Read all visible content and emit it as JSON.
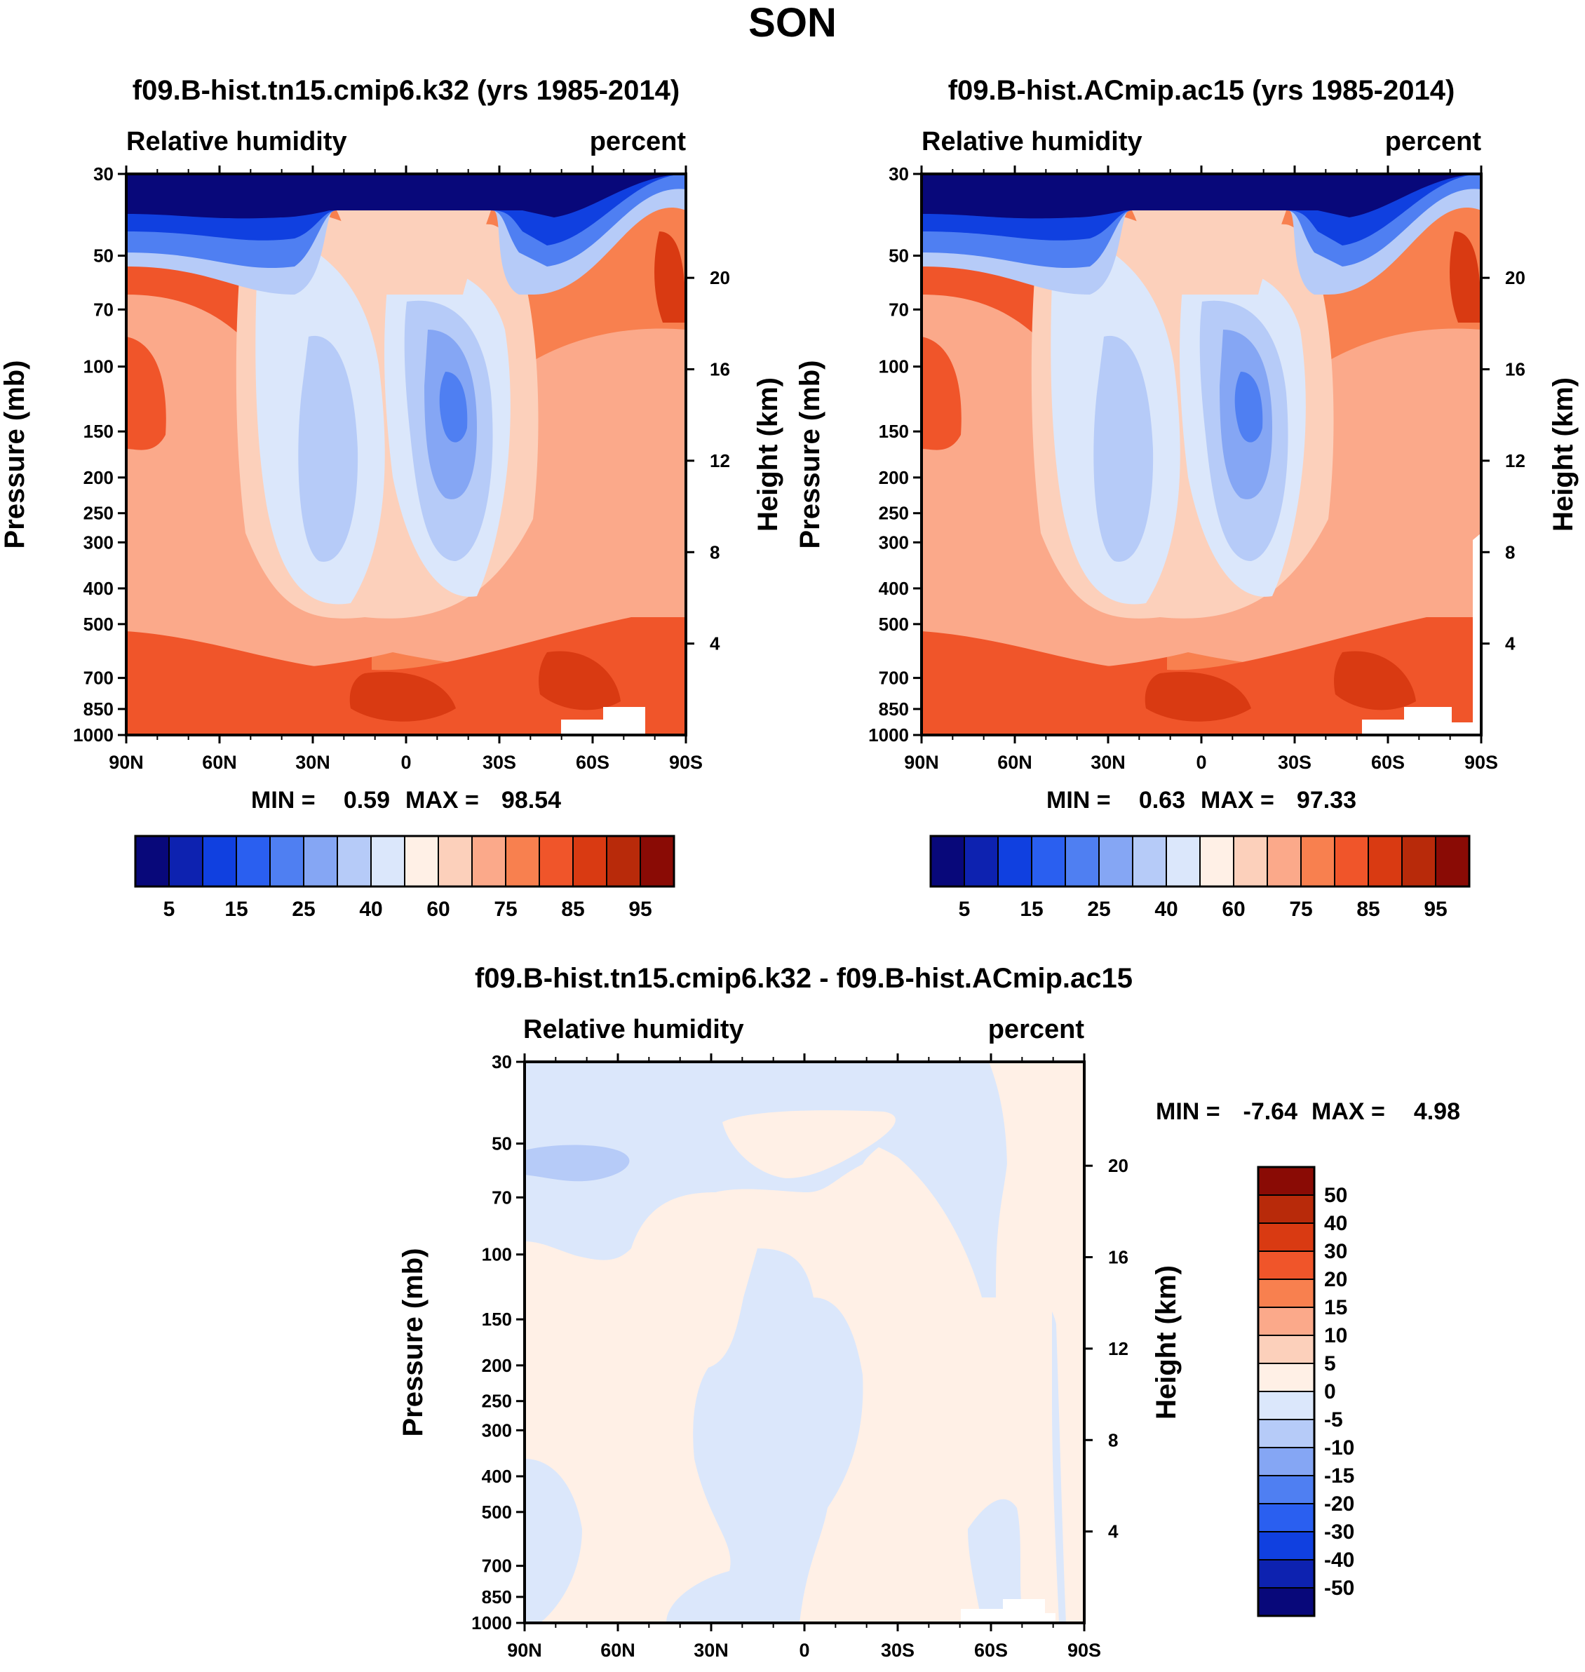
{
  "figure_title": "SON",
  "palettes": {
    "abs_colors": [
      "#08087a",
      "#0d22b0",
      "#1040e0",
      "#2a5ff0",
      "#4f7ff2",
      "#85a6f4",
      "#b6cbf8",
      "#dbe7fb",
      "#fff0e6",
      "#fcd0bb",
      "#fba98a",
      "#f8804f",
      "#f0552a",
      "#d93a12",
      "#b82a0a",
      "#8a0b05"
    ],
    "abs_labels": [
      "5",
      "15",
      "25",
      "40",
      "60",
      "75",
      "85",
      "95"
    ],
    "diff_colors": [
      "#08087a",
      "#0d22b0",
      "#1040e0",
      "#2a5ff0",
      "#4f7ff2",
      "#85a6f4",
      "#b6cbf8",
      "#dbe7fb",
      "#fff0e6",
      "#fcd0bb",
      "#fba98a",
      "#f8804f",
      "#f0552a",
      "#d93a12",
      "#b82a0a",
      "#8a0b05"
    ],
    "diff_labels": [
      "-50",
      "-40",
      "-30",
      "-20",
      "-15",
      "-10",
      "-5",
      "0",
      "5",
      "10",
      "15",
      "20",
      "30",
      "40",
      "50"
    ]
  },
  "chart_data": [
    {
      "type": "heatmap",
      "title": "f09.B-hist.tn15.cmip6.k32 (yrs 1985-2014)",
      "left_label": "Relative humidity",
      "right_label": "percent",
      "ylabel": "Pressure (mb)",
      "y2label": "Height (km)",
      "x_ticks": [
        "90N",
        "60N",
        "30N",
        "0",
        "30S",
        "60S",
        "90S"
      ],
      "y_ticks": [
        30,
        50,
        70,
        100,
        150,
        200,
        250,
        300,
        400,
        500,
        700,
        850,
        1000
      ],
      "y2_ticks": [
        20,
        16,
        12,
        8,
        4
      ],
      "ylim": [
        1000,
        30
      ],
      "stats_min_label": "MIN =",
      "stats_min": "0.59",
      "stats_max_label": "MAX =",
      "stats_max": "98.54",
      "min": 0.59,
      "max": 98.54
    },
    {
      "type": "heatmap",
      "title": "f09.B-hist.ACmip.ac15 (yrs 1985-2014)",
      "left_label": "Relative humidity",
      "right_label": "percent",
      "ylabel": "Pressure (mb)",
      "y2label": "Height (km)",
      "x_ticks": [
        "90N",
        "60N",
        "30N",
        "0",
        "30S",
        "60S",
        "90S"
      ],
      "y_ticks": [
        30,
        50,
        70,
        100,
        150,
        200,
        250,
        300,
        400,
        500,
        700,
        850,
        1000
      ],
      "y2_ticks": [
        20,
        16,
        12,
        8,
        4
      ],
      "ylim": [
        1000,
        30
      ],
      "stats_min_label": "MIN =",
      "stats_min": "0.63",
      "stats_max_label": "MAX =",
      "stats_max": "97.33",
      "min": 0.63,
      "max": 97.33
    },
    {
      "type": "heatmap",
      "title": "f09.B-hist.tn15.cmip6.k32 - f09.B-hist.ACmip.ac15",
      "left_label": "Relative humidity",
      "right_label": "percent",
      "ylabel": "Pressure (mb)",
      "y2label": "Height (km)",
      "x_ticks": [
        "90N",
        "60N",
        "30N",
        "0",
        "30S",
        "60S",
        "90S"
      ],
      "y_ticks": [
        30,
        50,
        70,
        100,
        150,
        200,
        250,
        300,
        400,
        500,
        700,
        850,
        1000
      ],
      "y2_ticks": [
        20,
        16,
        12,
        8,
        4
      ],
      "ylim": [
        1000,
        30
      ],
      "stats_min_label": "MIN =",
      "stats_min": "-7.64",
      "stats_max_label": "MAX =",
      "stats_max": "4.98",
      "min": -7.64,
      "max": 4.98
    }
  ]
}
